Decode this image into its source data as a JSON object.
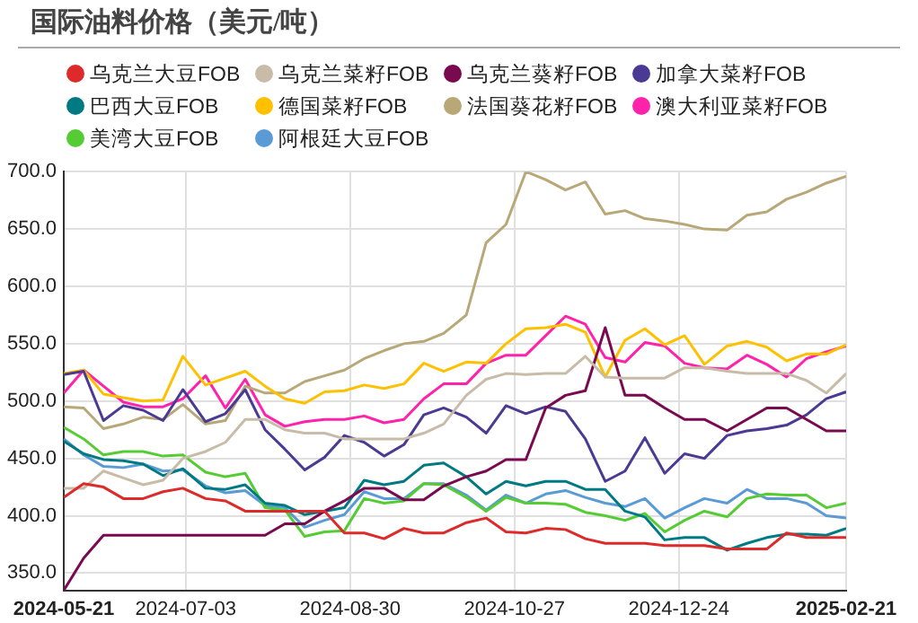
{
  "chart_data": {
    "type": "line",
    "title": "国际油料价格（美元/吨）",
    "x": [
      "2024-05-21",
      "2024-05-28",
      "2024-06-04",
      "2024-06-11",
      "2024-06-18",
      "2024-06-25",
      "2024-07-02",
      "2024-07-10",
      "2024-07-17",
      "2024-07-24",
      "2024-07-31",
      "2024-08-07",
      "2024-08-14",
      "2024-08-21",
      "2024-08-28",
      "2024-09-04",
      "2024-09-11",
      "2024-09-18",
      "2024-09-25",
      "2024-10-02",
      "2024-10-10",
      "2024-10-17",
      "2024-10-24",
      "2024-10-31",
      "2024-11-07",
      "2024-11-14",
      "2024-11-21",
      "2024-11-28",
      "2024-12-05",
      "2024-12-12",
      "2024-12-19",
      "2024-12-26",
      "2025-01-02",
      "2025-01-10",
      "2025-01-17",
      "2025-01-24",
      "2025-01-31",
      "2025-02-07",
      "2025-02-14",
      "2025-02-21"
    ],
    "series": [
      {
        "name": "乌克兰大豆FOB",
        "color": "#dd2a2a",
        "values": [
          416,
          428,
          425,
          415,
          415,
          421,
          424,
          415,
          413,
          404,
          404,
          404,
          404,
          404,
          385,
          385,
          380,
          389,
          385,
          385,
          394,
          398,
          386,
          385,
          389,
          388,
          380,
          376,
          376,
          376,
          374,
          374,
          374,
          371,
          371,
          371,
          385,
          381,
          381,
          381
        ]
      },
      {
        "name": "乌克兰菜籽FOB",
        "color": "#c8bca8",
        "values": [
          424,
          424,
          439,
          433,
          427,
          431,
          450,
          456,
          464,
          484,
          484,
          475,
          472,
          472,
          467,
          467,
          467,
          467,
          472,
          480,
          505,
          519,
          524,
          523,
          524,
          524,
          539,
          521,
          520,
          520,
          520,
          529,
          529,
          526,
          524,
          524,
          524,
          518,
          507,
          524
        ]
      },
      {
        "name": "乌克兰葵籽FOB",
        "color": "#7a0a50",
        "values": [
          335,
          363,
          383,
          383,
          383,
          383,
          383,
          383,
          383,
          383,
          383,
          393,
          393,
          404,
          413,
          424,
          424,
          414,
          414,
          426,
          434,
          439,
          449,
          449,
          494,
          505,
          509,
          564,
          505,
          505,
          494,
          484,
          484,
          474,
          484,
          494,
          494,
          484,
          474,
          474
        ]
      },
      {
        "name": "加拿大菜籽FOB",
        "color": "#4b3a94",
        "values": [
          523,
          526,
          483,
          496,
          492,
          483,
          510,
          482,
          489,
          510,
          475,
          458,
          440,
          451,
          470,
          464,
          452,
          462,
          488,
          494,
          486,
          472,
          496,
          489,
          495,
          491,
          467,
          430,
          439,
          468,
          437,
          454,
          450,
          470,
          474,
          476,
          479,
          488,
          502,
          508
        ]
      },
      {
        "name": "巴西大豆FOB",
        "color": "#007a82",
        "values": [
          465,
          454,
          449,
          448,
          445,
          435,
          441,
          424,
          423,
          427,
          411,
          409,
          401,
          404,
          407,
          431,
          427,
          430,
          444,
          446,
          434,
          419,
          430,
          426,
          430,
          430,
          423,
          423,
          404,
          399,
          379,
          381,
          381,
          370,
          376,
          381,
          384,
          384,
          383,
          389
        ]
      },
      {
        "name": "德国菜籽FOB",
        "color": "#ffc000",
        "values": [
          524,
          527,
          506,
          503,
          500,
          501,
          539,
          514,
          520,
          526,
          513,
          502,
          498,
          508,
          509,
          514,
          511,
          515,
          533,
          526,
          534,
          533,
          550,
          563,
          564,
          567,
          560,
          521,
          553,
          563,
          549,
          557,
          532,
          548,
          552,
          547,
          535,
          541,
          541,
          549
        ]
      },
      {
        "name": "法国葵花籽FOB",
        "color": "#b8a878",
        "values": [
          495,
          494,
          476,
          480,
          486,
          484,
          497,
          480,
          483,
          513,
          507,
          507,
          517,
          522,
          527,
          537,
          544,
          550,
          552,
          559,
          575,
          638,
          654,
          700,
          693,
          684,
          691,
          663,
          666,
          659,
          657,
          654,
          650,
          649,
          662,
          665,
          676,
          682,
          690,
          696
        ]
      },
      {
        "name": "澳大利亚菜籽FOB",
        "color": "#ff22aa",
        "values": [
          507,
          527,
          513,
          499,
          495,
          495,
          502,
          522,
          494,
          519,
          488,
          478,
          482,
          484,
          484,
          487,
          481,
          484,
          502,
          515,
          515,
          533,
          540,
          540,
          557,
          574,
          567,
          538,
          534,
          551,
          548,
          533,
          529,
          528,
          540,
          532,
          521,
          537,
          543,
          548
        ]
      },
      {
        "name": "美湾大豆FOB",
        "color": "#55cc33",
        "values": [
          477,
          467,
          453,
          456,
          456,
          452,
          453,
          438,
          434,
          437,
          407,
          405,
          382,
          386,
          387,
          415,
          411,
          413,
          428,
          427,
          416,
          404,
          416,
          411,
          411,
          410,
          403,
          400,
          396,
          402,
          386,
          396,
          404,
          399,
          415,
          419,
          418,
          418,
          407,
          411
        ]
      },
      {
        "name": "阿根廷大豆FOB",
        "color": "#5b9bd5",
        "values": [
          467,
          453,
          443,
          442,
          445,
          439,
          440,
          426,
          420,
          422,
          409,
          407,
          390,
          396,
          401,
          421,
          415,
          415,
          428,
          428,
          418,
          405,
          418,
          411,
          419,
          422,
          416,
          411,
          408,
          415,
          398,
          407,
          415,
          411,
          423,
          415,
          415,
          411,
          400,
          398
        ]
      }
    ],
    "xlim": [
      "2024-05-21",
      "2025-02-21"
    ],
    "xticks": [
      "2024-05-21",
      "2024-07-03",
      "2024-08-30",
      "2024-10-27",
      "2024-12-24",
      "2025-02-21"
    ],
    "ylim": [
      335,
      700
    ],
    "yticks": [
      {
        "value": 350,
        "label": "350.0"
      },
      {
        "value": 400,
        "label": "400.0"
      },
      {
        "value": 450,
        "label": "450.0"
      },
      {
        "value": 500,
        "label": "500.0"
      },
      {
        "value": 550,
        "label": "550.0"
      },
      {
        "value": 600,
        "label": "600.0"
      },
      {
        "value": 650,
        "label": "650.0"
      },
      {
        "value": 700,
        "label": "700.0"
      }
    ],
    "grid": true,
    "legend": "top",
    "marker": "none",
    "line_style": "solid"
  }
}
